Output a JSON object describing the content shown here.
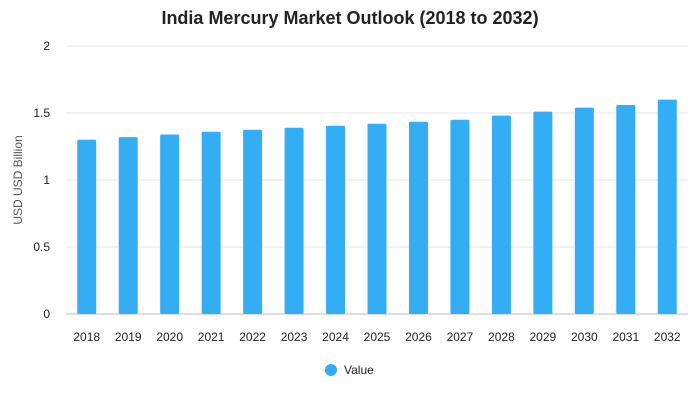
{
  "chart_data": {
    "type": "bar",
    "title": "India Mercury Market Outlook (2018 to 2032)",
    "xlabel": "",
    "ylabel": "USD USD Billion",
    "categories": [
      "2018",
      "2019",
      "2020",
      "2021",
      "2022",
      "2023",
      "2024",
      "2025",
      "2026",
      "2027",
      "2028",
      "2029",
      "2030",
      "2031",
      "2032"
    ],
    "series": [
      {
        "name": "Value",
        "values": [
          1.3,
          1.32,
          1.34,
          1.36,
          1.375,
          1.39,
          1.405,
          1.42,
          1.435,
          1.45,
          1.48,
          1.51,
          1.54,
          1.56,
          1.6
        ]
      }
    ],
    "ylim": [
      0,
      2
    ],
    "yticks": [
      "0",
      "0.5",
      "1",
      "1.5",
      "2"
    ],
    "grid": true,
    "legend": "bottom-center",
    "color": "#33adf4"
  }
}
